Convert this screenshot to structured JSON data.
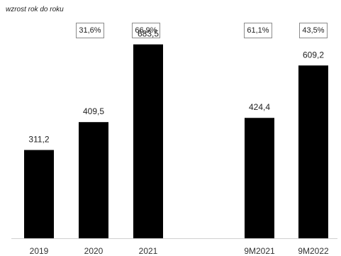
{
  "growth_label": "wzrost rok do roku",
  "growth_boxes": [
    {
      "category": "2020",
      "text": "31,6%"
    },
    {
      "category": "2021",
      "text": "66,9%"
    },
    {
      "category": "9M2021",
      "text": "61,1%"
    },
    {
      "category": "9M2022",
      "text": "43,5%"
    }
  ],
  "chart_data": {
    "type": "bar",
    "categories": [
      "2019",
      "2020",
      "2021",
      "9M2021",
      "9M2022"
    ],
    "values": [
      311.2,
      409.5,
      683.5,
      424.4,
      609.2
    ],
    "data_labels": [
      "311,2",
      "409,5",
      "683,5",
      "424,4",
      "609,2"
    ],
    "title": "",
    "xlabel": "",
    "ylabel": "",
    "ylim": [
      0,
      790
    ],
    "grid": false,
    "legend": "none",
    "bar_color": "#000000"
  }
}
